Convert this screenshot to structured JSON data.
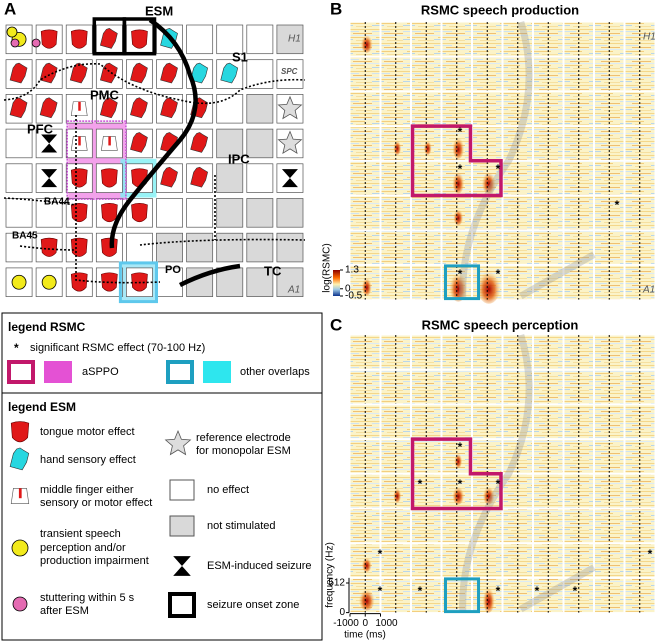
{
  "panel_a": {
    "label": "A",
    "esm": "ESM",
    "regions": {
      "h1": "H1",
      "spc": "SPC",
      "s1": "S1",
      "pmc": "PMC",
      "pfc": "PFC",
      "ipc": "IPC",
      "ba44": "BA44",
      "ba45": "BA45",
      "po": "PO",
      "tc": "TC",
      "a1": "A1"
    }
  },
  "significance_mark": "*",
  "panel_b": {
    "label": "B",
    "title": "RSMC speech production",
    "h1": "H1",
    "a1": "A1",
    "colorbar": {
      "label": "log(RSMC)",
      "clim": [
        -0.5,
        1.3
      ],
      "ticks": [
        1.3,
        0,
        -0.5
      ]
    }
  },
  "panel_c": {
    "label": "C",
    "title": "RSMC speech perception",
    "y_label": "frequency (Hz)",
    "ylim": [
      0,
      600
    ],
    "yticks": [
      512,
      0
    ],
    "x_label": "time (ms)",
    "xlim": [
      -1000,
      1000
    ],
    "xticks": [
      -1000,
      0,
      1000
    ]
  },
  "legend_rsmc": {
    "title": "legend RSMC",
    "significant": "significant RSMC effect (70-100 Hz)",
    "aspo": "aSPPO",
    "other": "other overlaps"
  },
  "legend_esm": {
    "title": "legend ESM",
    "tongue": "tongue motor effect",
    "hand": "hand sensory effect",
    "finger": [
      "middle finger either",
      "sensory or motor effect"
    ],
    "transient": [
      "transient speech",
      "perception and/or",
      "production impairment"
    ],
    "stutter": [
      "stuttering within 5 s",
      "after ESM"
    ],
    "reference": [
      "reference electrode",
      "for monopolar ESM"
    ],
    "no_effect": "no effect",
    "not_stimulated": "not stimulated",
    "seizure": "ESM-induced seizure",
    "onset": "seizure onset zone"
  }
}
